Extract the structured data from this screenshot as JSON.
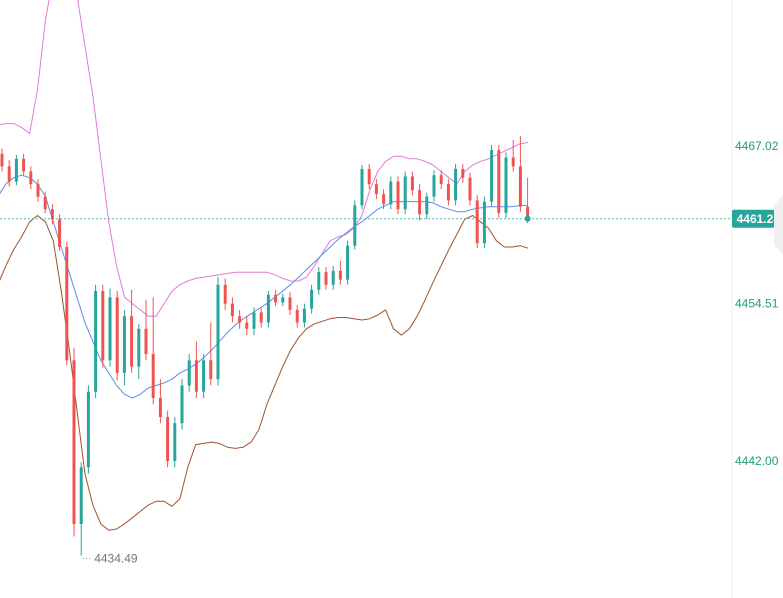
{
  "chart_data": {
    "type": "candlestick",
    "title": "",
    "xlabel": "",
    "ylabel": "",
    "y_axis_ticks": [
      {
        "value": 4467.02,
        "label": "4467.02"
      },
      {
        "value": 4454.51,
        "label": "4454.51"
      },
      {
        "value": 4442.0,
        "label": "4442.00"
      }
    ],
    "last_price": {
      "value": 4461.24,
      "label": "4461.24"
    },
    "min_marker": {
      "value": 4434.49,
      "label": "4434.49"
    },
    "colors": {
      "up": "#26a69a",
      "down": "#ef5350",
      "bb_upper": "#e27ad6",
      "bb_lower": "#a0522d",
      "ma": "#5b8def",
      "axis_text": "#1f9e77",
      "last_price_bg": "#26a69a"
    },
    "candles": [
      [
        4466.4,
        4466.8,
        4465.0,
        4465.4
      ],
      [
        4465.4,
        4465.9,
        4463.8,
        4464.2
      ],
      [
        4464.2,
        4466.3,
        4463.9,
        4466.0
      ],
      [
        4466.0,
        4466.4,
        4464.7,
        4465.0
      ],
      [
        4465.0,
        4465.4,
        4463.6,
        4464.0
      ],
      [
        4464.0,
        4464.4,
        4462.6,
        4463.0
      ],
      [
        4463.0,
        4463.4,
        4461.7,
        4462.0
      ],
      [
        4462.0,
        4462.4,
        4460.8,
        4461.2
      ],
      [
        4461.2,
        4461.6,
        4458.7,
        4459.0
      ],
      [
        4459.0,
        4459.4,
        4449.6,
        4450.0
      ],
      [
        4450.0,
        4451.0,
        4436.0,
        4437.0
      ],
      [
        4437.0,
        4441.9,
        4434.49,
        4441.5
      ],
      [
        4441.5,
        4448.0,
        4441.0,
        4447.5
      ],
      [
        4447.5,
        4456.0,
        4447.0,
        4455.5
      ],
      [
        4455.5,
        4456.0,
        4449.4,
        4450.0
      ],
      [
        4450.0,
        4455.7,
        4449.5,
        4455.0
      ],
      [
        4455.0,
        4455.5,
        4448.4,
        4449.0
      ],
      [
        4449.0,
        4454.0,
        4448.0,
        4453.5
      ],
      [
        4453.5,
        4455.6,
        4449.0,
        4449.5
      ],
      [
        4449.5,
        4452.9,
        4448.5,
        4452.5
      ],
      [
        4452.5,
        4454.8,
        4450.0,
        4450.5
      ],
      [
        4450.5,
        4455.0,
        4446.5,
        4447.0
      ],
      [
        4447.0,
        4448.5,
        4445.0,
        4445.5
      ],
      [
        4445.5,
        4446.0,
        4441.5,
        4442.0
      ],
      [
        4442.0,
        4445.5,
        4441.5,
        4445.0
      ],
      [
        4445.0,
        4448.5,
        4444.5,
        4448.0
      ],
      [
        4448.0,
        4450.5,
        4447.5,
        4450.0
      ],
      [
        4450.0,
        4451.5,
        4447.0,
        4447.5
      ],
      [
        4447.5,
        4450.5,
        4447.0,
        4450.0
      ],
      [
        4450.0,
        4453.0,
        4448.0,
        4448.5
      ],
      [
        4448.5,
        4456.6,
        4448.0,
        4456.0
      ],
      [
        4456.0,
        4456.5,
        4454.0,
        4454.5
      ],
      [
        4454.5,
        4455.0,
        4453.0,
        4453.5
      ],
      [
        4453.5,
        4454.0,
        4452.5,
        4453.0
      ],
      [
        4453.0,
        4453.5,
        4452.0,
        4452.5
      ],
      [
        4452.5,
        4454.2,
        4452.0,
        4453.8
      ],
      [
        4453.8,
        4454.2,
        4452.6,
        4453.0
      ],
      [
        4453.0,
        4455.5,
        4452.6,
        4455.2
      ],
      [
        4455.2,
        4455.6,
        4454.3,
        4454.6
      ],
      [
        4454.6,
        4455.3,
        4454.3,
        4455.0
      ],
      [
        4455.0,
        4455.4,
        4453.6,
        4454.0
      ],
      [
        4454.0,
        4454.4,
        4452.6,
        4453.0
      ],
      [
        4453.0,
        4454.5,
        4452.6,
        4454.1
      ],
      [
        4454.1,
        4456.0,
        4453.7,
        4455.6
      ],
      [
        4455.6,
        4457.4,
        4455.2,
        4457.0
      ],
      [
        4457.0,
        4457.4,
        4455.6,
        4456.0
      ],
      [
        4456.0,
        4457.5,
        4455.6,
        4457.1
      ],
      [
        4457.1,
        4457.9,
        4456.0,
        4456.4
      ],
      [
        4456.4,
        4459.5,
        4456.0,
        4459.1
      ],
      [
        4459.1,
        4462.7,
        4458.8,
        4462.3
      ],
      [
        4462.3,
        4465.5,
        4462.0,
        4465.2
      ],
      [
        4465.2,
        4465.6,
        4463.6,
        4464.0
      ],
      [
        4464.0,
        4464.4,
        4462.8,
        4463.2
      ],
      [
        4463.2,
        4463.6,
        4462.0,
        4462.4
      ],
      [
        4462.4,
        4464.6,
        4462.0,
        4464.2
      ],
      [
        4464.2,
        4464.6,
        4461.6,
        4462.0
      ],
      [
        4462.0,
        4465.0,
        4461.6,
        4464.6
      ],
      [
        4464.6,
        4465.0,
        4463.1,
        4463.5
      ],
      [
        4463.5,
        4464.0,
        4461.1,
        4461.6
      ],
      [
        4461.6,
        4463.3,
        4461.2,
        4463.0
      ],
      [
        4463.0,
        4465.1,
        4462.6,
        4464.7
      ],
      [
        4464.7,
        4465.1,
        4463.6,
        4464.0
      ],
      [
        4464.0,
        4464.4,
        4462.3,
        4462.7
      ],
      [
        4462.7,
        4465.6,
        4462.3,
        4465.2
      ],
      [
        4465.2,
        4465.6,
        4464.1,
        4464.5
      ],
      [
        4464.5,
        4464.9,
        4462.3,
        4462.7
      ],
      [
        4462.7,
        4463.1,
        4458.9,
        4459.3
      ],
      [
        4459.3,
        4463.0,
        4458.9,
        4462.6
      ],
      [
        4462.6,
        4467.1,
        4462.2,
        4466.7
      ],
      [
        4466.7,
        4467.1,
        4461.3,
        4461.7
      ],
      [
        4461.7,
        4466.5,
        4461.3,
        4466.1
      ],
      [
        4466.1,
        4467.5,
        4465.0,
        4465.4
      ],
      [
        4465.4,
        4467.8,
        4461.8,
        4462.2
      ],
      [
        4462.2,
        4464.5,
        4460.9,
        4461.24
      ]
    ],
    "bb_upper": [
      4468.6,
      4468.7,
      4468.8,
      4468.8,
      4468.5,
      4468.0,
      4471.5,
      4477.0,
      4480.5,
      4482.2,
      4481.5,
      4479.0,
      4475.0,
      4471.0,
      4466.0,
      4461.0,
      4457.5,
      4455.0,
      4454.5,
      4454.0,
      4453.5,
      4453.5,
      4454.5,
      4455.5,
      4456.0,
      4456.3,
      4456.5,
      4456.6,
      4456.7,
      4456.8,
      4456.9,
      4457.0,
      4457.0,
      4457.0,
      4457.0,
      4457.0,
      4456.8,
      4456.5,
      4456.3,
      4456.3,
      4456.6,
      4457.5,
      4458.5,
      4459.5,
      4459.8,
      4460.0,
      4460.5,
      4461.5,
      4463.5,
      4465.0,
      4465.8,
      4466.2,
      4466.2,
      4466.0,
      4466.0,
      4465.8,
      4465.5,
      4465.0,
      4464.5,
      4464.0,
      4465.0,
      4465.5,
      4465.8,
      4466.0,
      4466.3,
      4466.6,
      4466.9,
      4467.2,
      4467.3
    ],
    "ma": [
      4462.0,
      4463.0,
      4464.0,
      4464.5,
      4464.7,
      4464.5,
      4464.0,
      4463.0,
      4461.0,
      4459.0,
      4457.0,
      4455.0,
      4453.0,
      4451.5,
      4450.0,
      4449.0,
      4448.0,
      4447.3,
      4447.0,
      4447.3,
      4447.8,
      4448.0,
      4448.2,
      4448.5,
      4449.0,
      4449.3,
      4449.7,
      4450.2,
      4450.8,
      4451.5,
      4452.2,
      4452.8,
      4453.3,
      4453.7,
      4454.1,
      4454.5,
      4455.0,
      4455.5,
      4456.0,
      4456.6,
      4457.2,
      4457.8,
      4458.4,
      4459.0,
      4459.6,
      4460.1,
      4460.6,
      4461.0,
      4461.5,
      4462.0,
      4462.3,
      4462.6,
      4462.6,
      4462.6,
      4462.6,
      4462.6,
      4462.5,
      4462.2,
      4462.0,
      4461.8,
      4461.8,
      4462.0,
      4462.1,
      4462.2,
      4462.2,
      4462.2,
      4462.2,
      4462.3,
      4462.3
    ],
    "bb_lower": [
      4455.0,
      4456.0,
      4457.5,
      4458.8,
      4459.8,
      4461.0,
      4461.5,
      4461.0,
      4459.5,
      4455.5,
      4451.0,
      4446.0,
      4441.0,
      4438.5,
      4437.0,
      4436.5,
      4436.6,
      4437.0,
      4437.5,
      4438.0,
      4438.5,
      4438.8,
      4438.8,
      4438.4,
      4439.0,
      4441.5,
      4443.3,
      4443.4,
      4443.5,
      4443.4,
      4443.1,
      4443.0,
      4443.1,
      4443.5,
      4444.5,
      4446.5,
      4448.0,
      4449.5,
      4450.8,
      4451.8,
      4452.5,
      4452.9,
      4453.1,
      4453.3,
      4453.4,
      4453.4,
      4453.3,
      4453.2,
      4453.3,
      4453.6,
      4454.0,
      4452.5,
      4452.0,
      4452.5,
      4453.5,
      4454.8,
      4456.2,
      4457.5,
      4458.8,
      4460.0,
      4461.2,
      4461.5,
      4461.0,
      4460.5,
      4459.5,
      4459.0,
      4459.0,
      4459.1,
      4458.9
    ],
    "band_start_x": -10,
    "band_end_x": 528
  }
}
